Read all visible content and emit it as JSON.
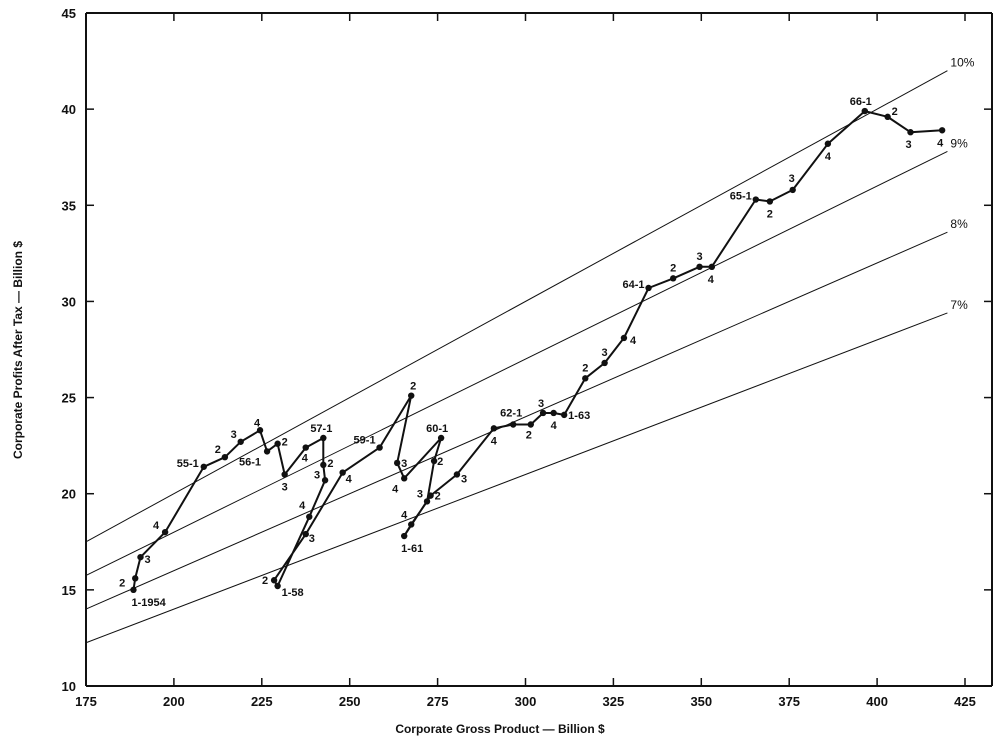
{
  "chart_data": {
    "type": "line",
    "title": "",
    "xlabel": "Corporate Gross Product — Billion $",
    "ylabel": "Corporate Profits After Tax — Billion $",
    "xlim": [
      175,
      435
    ],
    "ylim": [
      10,
      45
    ],
    "xticks": [
      175,
      200,
      225,
      250,
      275,
      300,
      325,
      350,
      375,
      400,
      425
    ],
    "yticks": [
      10,
      15,
      20,
      25,
      30,
      35,
      40,
      45
    ],
    "grid": false,
    "reference_lines": [
      {
        "name": "10%",
        "rate": 0.1
      },
      {
        "name": "9%",
        "rate": 0.09
      },
      {
        "name": "8%",
        "rate": 0.08
      },
      {
        "name": "7%",
        "rate": 0.07
      }
    ],
    "points": [
      {
        "x": 188.5,
        "y": 15.0,
        "label": "1-1954"
      },
      {
        "x": 189.0,
        "y": 15.6,
        "label": "2"
      },
      {
        "x": 190.5,
        "y": 16.7,
        "label": "3"
      },
      {
        "x": 197.5,
        "y": 18.0,
        "label": "4"
      },
      {
        "x": 208.5,
        "y": 21.4,
        "label": "55-1"
      },
      {
        "x": 214.5,
        "y": 21.9,
        "label": "2"
      },
      {
        "x": 219.0,
        "y": 22.7,
        "label": "3"
      },
      {
        "x": 224.5,
        "y": 23.3,
        "label": "4"
      },
      {
        "x": 226.5,
        "y": 22.2,
        "label": "56-1"
      },
      {
        "x": 229.5,
        "y": 22.6,
        "label": "2"
      },
      {
        "x": 231.5,
        "y": 21.0,
        "label": "3"
      },
      {
        "x": 237.5,
        "y": 22.4,
        "label": "4"
      },
      {
        "x": 242.5,
        "y": 22.9,
        "label": "57-1"
      },
      {
        "x": 242.5,
        "y": 21.5,
        "label": "2"
      },
      {
        "x": 243.0,
        "y": 20.7,
        "label": "3"
      },
      {
        "x": 238.5,
        "y": 18.8,
        "label": "4"
      },
      {
        "x": 229.5,
        "y": 15.2,
        "label": "1-58"
      },
      {
        "x": 228.5,
        "y": 15.5,
        "label": "2"
      },
      {
        "x": 237.5,
        "y": 17.9,
        "label": "3"
      },
      {
        "x": 248.0,
        "y": 21.1,
        "label": "4"
      },
      {
        "x": 258.5,
        "y": 22.4,
        "label": "59-1"
      },
      {
        "x": 267.5,
        "y": 25.1,
        "label": "2"
      },
      {
        "x": 263.5,
        "y": 21.6,
        "label": "3"
      },
      {
        "x": 265.5,
        "y": 20.8,
        "label": "4"
      },
      {
        "x": 276.0,
        "y": 22.9,
        "label": "60-1"
      },
      {
        "x": 274.0,
        "y": 21.7,
        "label": "2"
      },
      {
        "x": 272.0,
        "y": 19.6,
        "label": "3"
      },
      {
        "x": 267.5,
        "y": 18.4,
        "label": "4"
      },
      {
        "x": 265.5,
        "y": 17.8,
        "label": "1-61"
      },
      {
        "x": 273.0,
        "y": 19.9,
        "label": "2"
      },
      {
        "x": 280.5,
        "y": 21.0,
        "label": "3"
      },
      {
        "x": 291.0,
        "y": 23.4,
        "label": "4"
      },
      {
        "x": 296.5,
        "y": 23.6,
        "label": "62-1"
      },
      {
        "x": 301.5,
        "y": 23.6,
        "label": "2"
      },
      {
        "x": 305.0,
        "y": 24.2,
        "label": "3"
      },
      {
        "x": 308.0,
        "y": 24.2,
        "label": "4"
      },
      {
        "x": 311.0,
        "y": 24.1,
        "label": "1-63"
      },
      {
        "x": 317.0,
        "y": 26.0,
        "label": "2"
      },
      {
        "x": 322.5,
        "y": 26.8,
        "label": "3"
      },
      {
        "x": 328.0,
        "y": 28.1,
        "label": "4"
      },
      {
        "x": 335.0,
        "y": 30.7,
        "label": "64-1"
      },
      {
        "x": 342.0,
        "y": 31.2,
        "label": "2"
      },
      {
        "x": 349.5,
        "y": 31.8,
        "label": "3"
      },
      {
        "x": 353.0,
        "y": 31.8,
        "label": "4"
      },
      {
        "x": 365.5,
        "y": 35.3,
        "label": "65-1"
      },
      {
        "x": 369.5,
        "y": 35.2,
        "label": "2"
      },
      {
        "x": 376.0,
        "y": 35.8,
        "label": "3"
      },
      {
        "x": 386.0,
        "y": 38.2,
        "label": "4"
      },
      {
        "x": 396.5,
        "y": 39.9,
        "label": "66-1"
      },
      {
        "x": 403.0,
        "y": 39.6,
        "label": "2"
      },
      {
        "x": 409.5,
        "y": 38.8,
        "label": "3"
      },
      {
        "x": 418.5,
        "y": 38.9,
        "label": "4"
      }
    ]
  }
}
